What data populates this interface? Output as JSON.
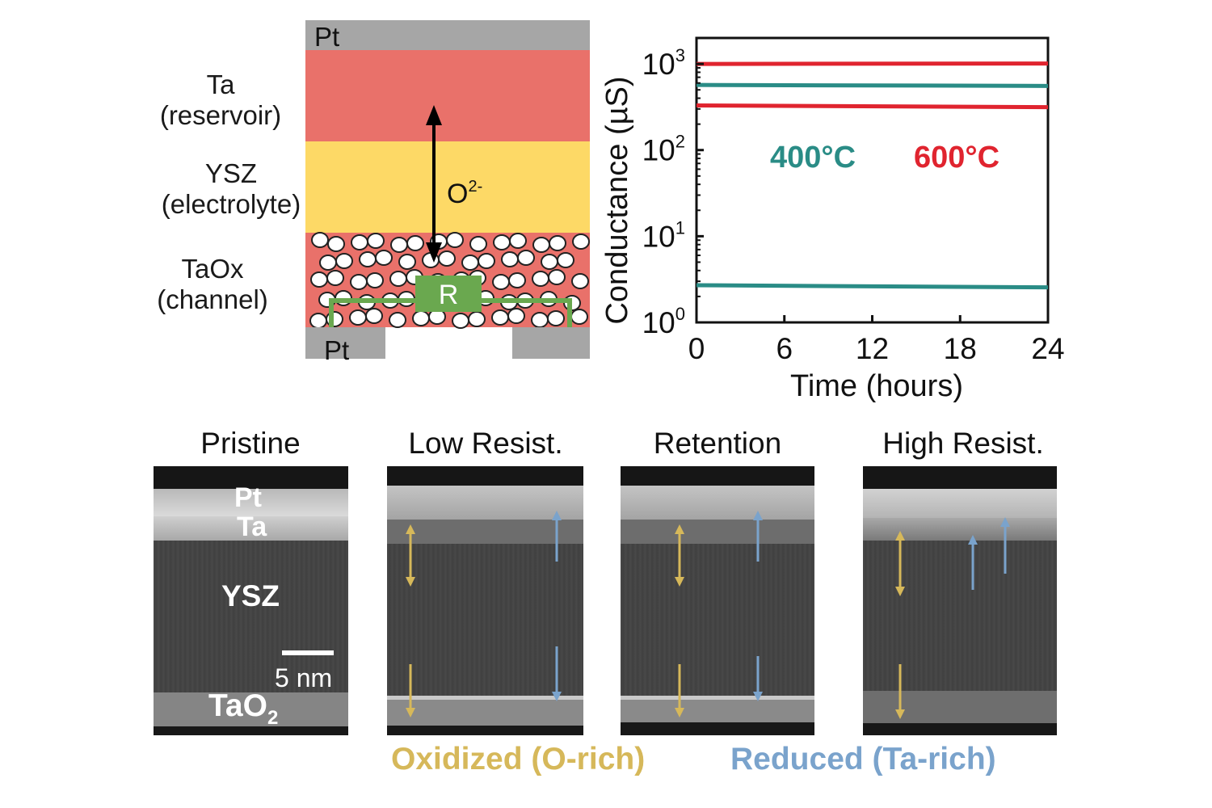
{
  "stack": {
    "electrode_label": "Pt",
    "bottom_electrode_label": "Pt",
    "ion_label": "O",
    "ion_charge": "2-",
    "resistor_label": "R",
    "layers": [
      {
        "name": "Ta",
        "role": "(reservoir)",
        "color": "#e9716a"
      },
      {
        "name": "YSZ",
        "role": "(electrolyte)",
        "color": "#fdd966"
      },
      {
        "name": "TaOx",
        "role": "(channel)",
        "color": "#e9716a"
      }
    ],
    "pt_color": "#a6a6a6",
    "resistor_color": "#6aa84f"
  },
  "chart_data": {
    "type": "line",
    "xlabel": "Time (hours)",
    "ylabel": "Conductance (µS)",
    "xlim": [
      0,
      24
    ],
    "ylim": [
      1,
      2000
    ],
    "yscale": "log",
    "x_ticks": [
      "0",
      "6",
      "12",
      "18",
      "24"
    ],
    "y_ticks": [
      {
        "base": "10",
        "exp": "0"
      },
      {
        "base": "10",
        "exp": "1"
      },
      {
        "base": "10",
        "exp": "2"
      },
      {
        "base": "10",
        "exp": "3"
      }
    ],
    "annotations": [
      {
        "text": "400°C",
        "color": "#2a8c86"
      },
      {
        "text": "600°C",
        "color": "#e0242f"
      }
    ],
    "series": [
      {
        "temperature": "600°C",
        "color": "#e0242f",
        "x": [
          0,
          24
        ],
        "y": [
          1000,
          1010
        ]
      },
      {
        "temperature": "400°C",
        "color": "#2a8c86",
        "x": [
          0,
          24
        ],
        "y": [
          570,
          555
        ]
      },
      {
        "temperature": "600°C",
        "color": "#e0242f",
        "x": [
          0,
          24
        ],
        "y": [
          330,
          315
        ]
      },
      {
        "temperature": "400°C",
        "color": "#2a8c86",
        "x": [
          0,
          24
        ],
        "y": [
          2.7,
          2.55
        ]
      }
    ]
  },
  "tem": {
    "panels": [
      {
        "title": "Pristine"
      },
      {
        "title": "Low Resist."
      },
      {
        "title": "Retention"
      },
      {
        "title": "High Resist."
      }
    ],
    "pristine_labels": {
      "pt": "Pt",
      "ta": "Ta",
      "ysz": "YSZ",
      "scale": "5 nm",
      "tao2_main": "TaO",
      "tao2_sub": "2"
    },
    "legend": {
      "oxidized": "Oxidized (O-rich)",
      "reduced": "Reduced (Ta-rich)",
      "oxidized_color": "#d6b85a",
      "reduced_color": "#7aa3cc"
    }
  }
}
